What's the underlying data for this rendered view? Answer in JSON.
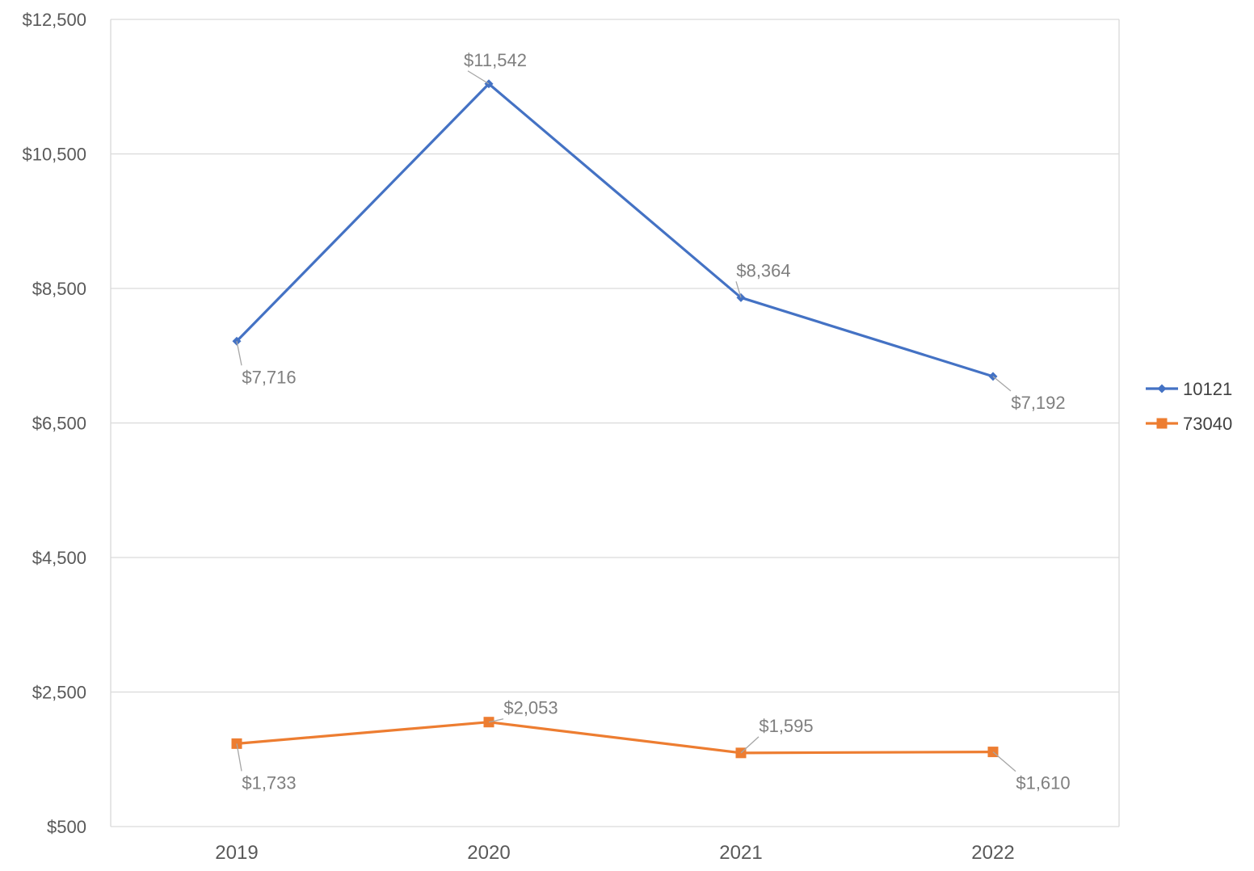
{
  "chart_data": {
    "type": "line",
    "title": "",
    "xlabel": "",
    "ylabel": "",
    "categories": [
      "2019",
      "2020",
      "2021",
      "2022"
    ],
    "ylim": [
      500,
      12500
    ],
    "yticks": [
      "$500",
      "$2,500",
      "$4,500",
      "$6,500",
      "$8,500",
      "$10,500",
      "$12,500"
    ],
    "ytick_values": [
      500,
      2500,
      4500,
      6500,
      8500,
      10500,
      12500
    ],
    "grid": true,
    "legend_position": "right",
    "series": [
      {
        "name": "10121",
        "color": "#4472c4",
        "marker": "diamond",
        "values": [
          7716,
          11542,
          8364,
          7192
        ],
        "labels": [
          "$7,716",
          "$11,542",
          "$8,364",
          "$7,192"
        ]
      },
      {
        "name": "73040",
        "color": "#ed7d31",
        "marker": "square",
        "values": [
          1733,
          2053,
          1595,
          1610
        ],
        "labels": [
          "$1,733",
          "$2,053",
          "$1,595",
          "$1,610"
        ]
      }
    ]
  }
}
